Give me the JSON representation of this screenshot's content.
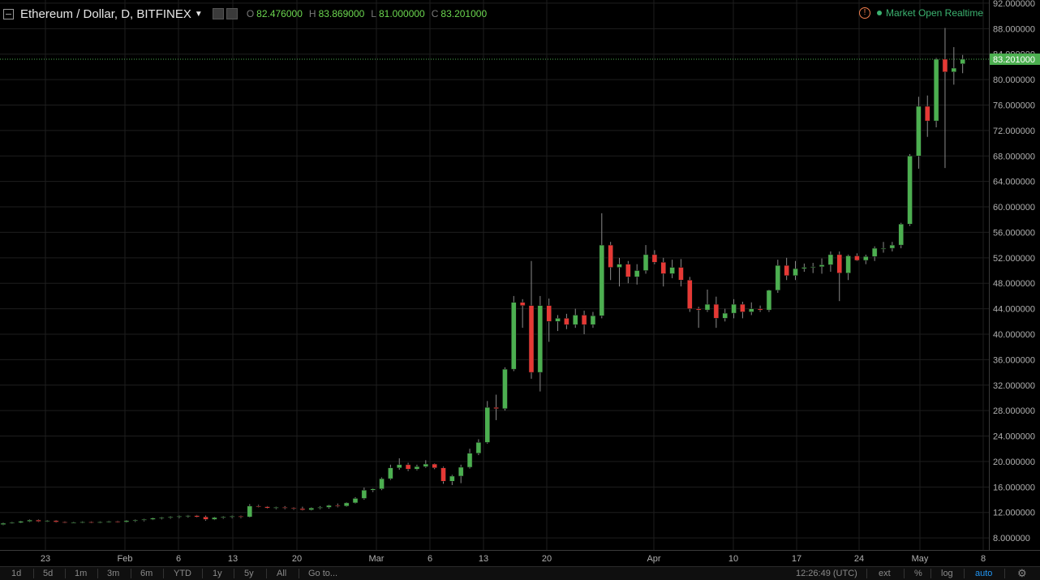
{
  "legend": {
    "title": "Ethereum / Dollar, D, BITFINEX",
    "o_label": "O",
    "o_value": "82.476000",
    "h_label": "H",
    "h_value": "83.869000",
    "l_label": "L",
    "l_value": "81.000000",
    "c_label": "C",
    "c_value": "83.201000"
  },
  "status": {
    "alert_icon": "!",
    "text": "Market Open Realtime"
  },
  "colors": {
    "up": "#4caf50",
    "down": "#e53935",
    "grid": "#1e1e1e",
    "last_price": "#4caf50"
  },
  "toolbar": {
    "ranges": [
      "1d",
      "5d",
      "1m",
      "3m",
      "6m",
      "YTD",
      "1y",
      "5y",
      "All"
    ],
    "goto": "Go to...",
    "time": "12:26:49 (UTC)",
    "ext": "ext",
    "percent": "%",
    "log": "log",
    "auto": "auto",
    "settings_icon": "gear-icon"
  },
  "chart_data": {
    "type": "candlestick",
    "title": "Ethereum / Dollar, D, BITFINEX",
    "last_price": "83.201000",
    "y_ticks": [
      "8.000000",
      "12.000000",
      "16.000000",
      "20.000000",
      "24.000000",
      "28.000000",
      "32.000000",
      "36.000000",
      "40.000000",
      "44.000000",
      "48.000000",
      "52.000000",
      "56.000000",
      "60.000000",
      "64.000000",
      "68.000000",
      "72.000000",
      "76.000000",
      "80.000000",
      "84.000000",
      "88.000000",
      "92.000000"
    ],
    "ylim": [
      6.1,
      92.5
    ],
    "x_ticks": [
      "23",
      "Feb",
      "6",
      "13",
      "20",
      "Mar",
      "6",
      "13",
      "20",
      "Apr",
      "10",
      "17",
      "24",
      "May",
      "8"
    ],
    "grid": true,
    "candles": [
      [
        10.1,
        10.4,
        10.0,
        10.3
      ],
      [
        10.3,
        10.5,
        10.2,
        10.4
      ],
      [
        10.4,
        10.7,
        10.3,
        10.6
      ],
      [
        10.6,
        10.9,
        10.5,
        10.8
      ],
      [
        10.8,
        10.9,
        10.5,
        10.6
      ],
      [
        10.6,
        10.8,
        10.5,
        10.7
      ],
      [
        10.7,
        10.8,
        10.4,
        10.5
      ],
      [
        10.5,
        10.6,
        10.3,
        10.4
      ],
      [
        10.4,
        10.5,
        10.3,
        10.4
      ],
      [
        10.4,
        10.6,
        10.3,
        10.5
      ],
      [
        10.5,
        10.6,
        10.3,
        10.4
      ],
      [
        10.4,
        10.6,
        10.3,
        10.5
      ],
      [
        10.5,
        10.7,
        10.4,
        10.6
      ],
      [
        10.6,
        10.7,
        10.4,
        10.5
      ],
      [
        10.5,
        10.8,
        10.4,
        10.7
      ],
      [
        10.7,
        10.9,
        10.5,
        10.8
      ],
      [
        10.8,
        11.0,
        10.6,
        10.9
      ],
      [
        10.9,
        11.2,
        10.8,
        11.1
      ],
      [
        11.1,
        11.3,
        10.9,
        11.2
      ],
      [
        11.2,
        11.4,
        11.0,
        11.3
      ],
      [
        11.3,
        11.5,
        11.1,
        11.4
      ],
      [
        11.4,
        11.6,
        11.2,
        11.5
      ],
      [
        11.5,
        11.6,
        11.2,
        11.3
      ],
      [
        11.3,
        11.5,
        10.7,
        10.9
      ],
      [
        10.9,
        11.3,
        10.8,
        11.2
      ],
      [
        11.2,
        11.4,
        11.0,
        11.3
      ],
      [
        11.3,
        11.5,
        11.1,
        11.4
      ],
      [
        11.4,
        11.5,
        11.1,
        11.3
      ],
      [
        11.3,
        13.3,
        11.2,
        13.0
      ],
      [
        13.0,
        13.2,
        12.8,
        12.9
      ],
      [
        12.9,
        13.0,
        12.6,
        12.7
      ],
      [
        12.7,
        12.9,
        12.5,
        12.8
      ],
      [
        12.8,
        13.0,
        12.5,
        12.7
      ],
      [
        12.7,
        12.8,
        12.4,
        12.6
      ],
      [
        12.6,
        12.9,
        12.3,
        12.4
      ],
      [
        12.4,
        12.8,
        12.3,
        12.7
      ],
      [
        12.7,
        13.0,
        12.5,
        12.8
      ],
      [
        12.8,
        13.2,
        12.6,
        13.1
      ],
      [
        13.1,
        13.4,
        12.8,
        13.0
      ],
      [
        13.0,
        13.6,
        12.9,
        13.5
      ],
      [
        13.5,
        14.4,
        13.4,
        14.2
      ],
      [
        14.2,
        15.9,
        14.0,
        15.5
      ],
      [
        15.5,
        15.8,
        15.2,
        15.7
      ],
      [
        15.7,
        17.5,
        15.5,
        17.3
      ],
      [
        17.3,
        19.5,
        17.1,
        19.0
      ],
      [
        19.0,
        20.5,
        18.7,
        19.5
      ],
      [
        19.5,
        19.8,
        18.5,
        18.8
      ],
      [
        18.8,
        19.5,
        18.6,
        19.2
      ],
      [
        19.2,
        20.2,
        19.0,
        19.6
      ],
      [
        19.6,
        19.7,
        18.8,
        19.0
      ],
      [
        19.0,
        19.2,
        16.5,
        16.9
      ],
      [
        16.9,
        17.9,
        16.3,
        17.7
      ],
      [
        17.7,
        19.5,
        16.6,
        19.1
      ],
      [
        19.1,
        22.0,
        18.9,
        21.3
      ],
      [
        21.3,
        23.5,
        21.0,
        23.0
      ],
      [
        23.0,
        29.5,
        22.8,
        28.5
      ],
      [
        28.5,
        30.5,
        26.5,
        28.3
      ],
      [
        28.3,
        34.8,
        28.0,
        34.5
      ],
      [
        34.5,
        46.0,
        34.2,
        45.0
      ],
      [
        45.0,
        45.5,
        41.0,
        44.5
      ],
      [
        44.5,
        51.5,
        33.0,
        34.0
      ],
      [
        34.0,
        46.0,
        31.0,
        44.5
      ],
      [
        44.5,
        45.6,
        38.8,
        42.0
      ],
      [
        42.0,
        43.0,
        40.5,
        42.5
      ],
      [
        42.5,
        43.2,
        40.8,
        41.5
      ],
      [
        41.5,
        44.0,
        41.0,
        43.0
      ],
      [
        43.0,
        43.7,
        40.0,
        41.5
      ],
      [
        41.5,
        43.5,
        41.0,
        42.9
      ],
      [
        42.9,
        59.0,
        42.5,
        54.0
      ],
      [
        54.0,
        54.5,
        48.5,
        50.5
      ],
      [
        50.5,
        52.0,
        47.5,
        51.0
      ],
      [
        51.0,
        51.5,
        48.0,
        49.0
      ],
      [
        49.0,
        51.0,
        47.8,
        50.0
      ],
      [
        50.0,
        54.0,
        49.5,
        52.5
      ],
      [
        52.5,
        53.2,
        51.0,
        51.3
      ],
      [
        51.3,
        52.0,
        47.5,
        49.5
      ],
      [
        49.5,
        51.7,
        48.8,
        50.5
      ],
      [
        50.5,
        51.8,
        47.5,
        48.5
      ],
      [
        48.5,
        49.0,
        43.5,
        44.0
      ],
      [
        44.0,
        44.3,
        41.0,
        43.8
      ],
      [
        43.8,
        47.0,
        43.5,
        44.7
      ],
      [
        44.7,
        45.9,
        41.0,
        42.5
      ],
      [
        42.5,
        44.0,
        42.0,
        43.3
      ],
      [
        43.3,
        45.5,
        42.5,
        44.7
      ],
      [
        44.7,
        45.1,
        42.5,
        43.5
      ],
      [
        43.5,
        45.0,
        43.0,
        44.0
      ],
      [
        44.0,
        44.5,
        43.5,
        43.8
      ],
      [
        43.8,
        47.0,
        43.5,
        46.9
      ],
      [
        46.9,
        51.7,
        46.5,
        50.8
      ],
      [
        50.8,
        52.0,
        48.5,
        49.2
      ],
      [
        49.2,
        51.5,
        48.5,
        50.3
      ],
      [
        50.3,
        51.1,
        49.8,
        50.5
      ],
      [
        50.5,
        51.2,
        49.6,
        50.6
      ],
      [
        50.6,
        51.9,
        49.5,
        50.9
      ],
      [
        50.9,
        53.0,
        49.8,
        52.5
      ],
      [
        52.5,
        53.0,
        45.2,
        49.6
      ],
      [
        49.6,
        52.5,
        48.5,
        52.3
      ],
      [
        52.3,
        52.7,
        51.5,
        51.6
      ],
      [
        51.6,
        52.5,
        51.0,
        52.2
      ],
      [
        52.2,
        53.8,
        51.5,
        53.5
      ],
      [
        53.5,
        54.5,
        52.8,
        53.5
      ],
      [
        53.5,
        54.5,
        53.0,
        54.0
      ],
      [
        54.0,
        57.5,
        53.5,
        57.3
      ],
      [
        57.3,
        68.3,
        57.0,
        68.0
      ],
      [
        68.0,
        77.3,
        66.0,
        75.8
      ],
      [
        75.8,
        77.5,
        71.0,
        73.5
      ],
      [
        73.5,
        83.4,
        72.5,
        83.2
      ],
      [
        83.2,
        88.1,
        66.1,
        81.2
      ],
      [
        81.2,
        85.1,
        79.2,
        81.8
      ],
      [
        82.476,
        83.869,
        81.0,
        83.201
      ]
    ]
  }
}
